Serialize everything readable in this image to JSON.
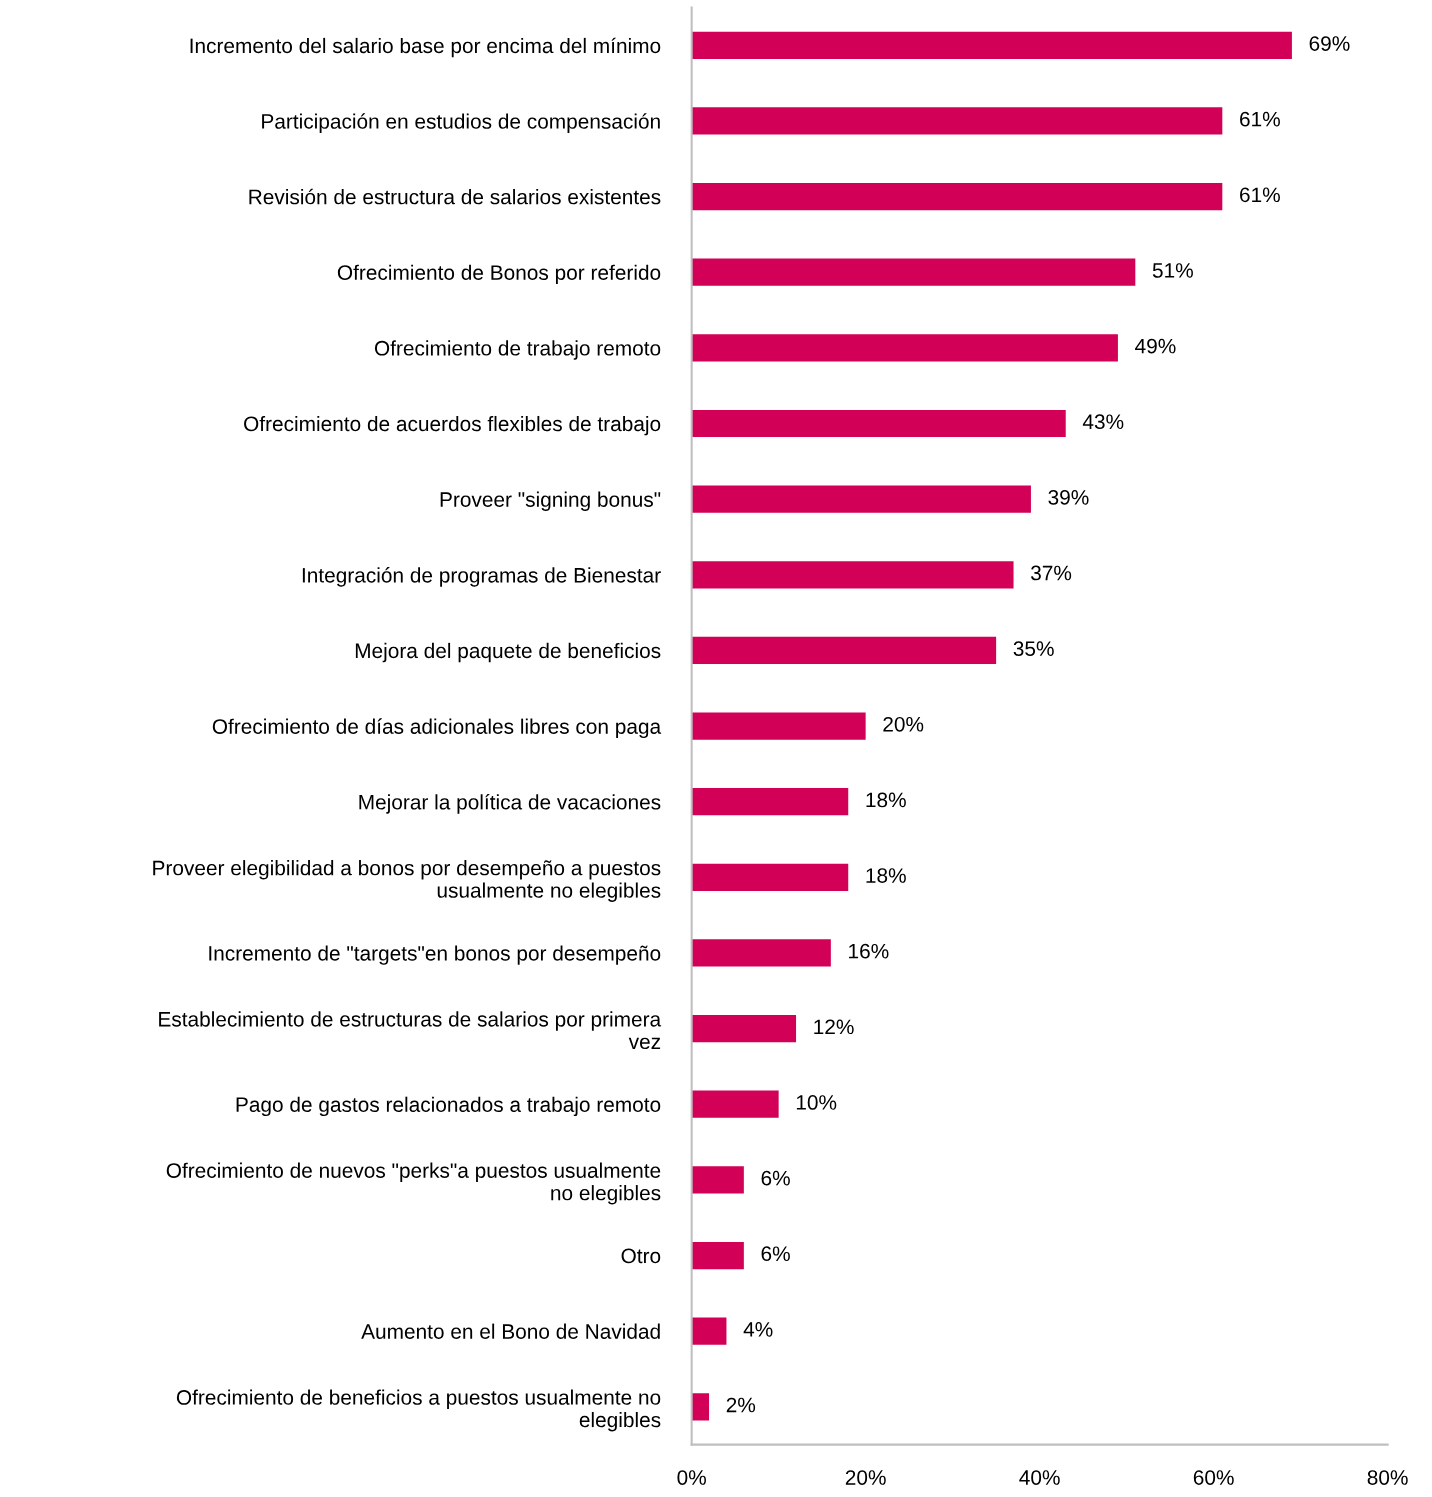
{
  "chart_data": {
    "type": "bar",
    "orientation": "horizontal",
    "categories": [
      "Incremento del salario base por encima del mínimo",
      "Participación en estudios de compensación",
      "Revisión de estructura de salarios existentes",
      "Ofrecimiento de Bonos por referido",
      "Ofrecimiento de trabajo remoto",
      "Ofrecimiento de acuerdos flexibles de trabajo",
      "Proveer \"signing bonus\"",
      "Integración de programas de Bienestar",
      "Mejora del paquete de beneficios",
      "Ofrecimiento de días adicionales libres con paga",
      "Mejorar la política de vacaciones",
      "Proveer elegibilidad a bonos por desempeño a puestos\nusualmente no elegibles",
      "Incremento de \"targets\"en bonos por desempeño",
      "Establecimiento de estructuras de salarios por primera\nvez",
      "Pago de gastos relacionados a trabajo remoto",
      "Ofrecimiento de nuevos \"perks\"a puestos usualmente\nno elegibles",
      "Otro",
      "Aumento en el Bono de Navidad",
      "Ofrecimiento de beneficios a puestos usualmente no\nelegibles"
    ],
    "values": [
      69,
      61,
      61,
      51,
      49,
      43,
      39,
      37,
      35,
      20,
      18,
      18,
      16,
      12,
      10,
      6,
      6,
      4,
      2
    ],
    "value_labels": [
      "69%",
      "61%",
      "61%",
      "51%",
      "49%",
      "43%",
      "39%",
      "37%",
      "35%",
      "20%",
      "18%",
      "18%",
      "16%",
      "12%",
      "10%",
      "6%",
      "6%",
      "4%",
      "2%"
    ],
    "color": "#d20057",
    "xlim": [
      0,
      80
    ],
    "xticks": [
      {
        "value": 0,
        "label": "0%"
      },
      {
        "value": 20,
        "label": "20%"
      },
      {
        "value": 40,
        "label": "40%"
      },
      {
        "value": 60,
        "label": "60%"
      },
      {
        "value": 80,
        "label": "80%"
      }
    ],
    "grid": false,
    "legend": false
  }
}
